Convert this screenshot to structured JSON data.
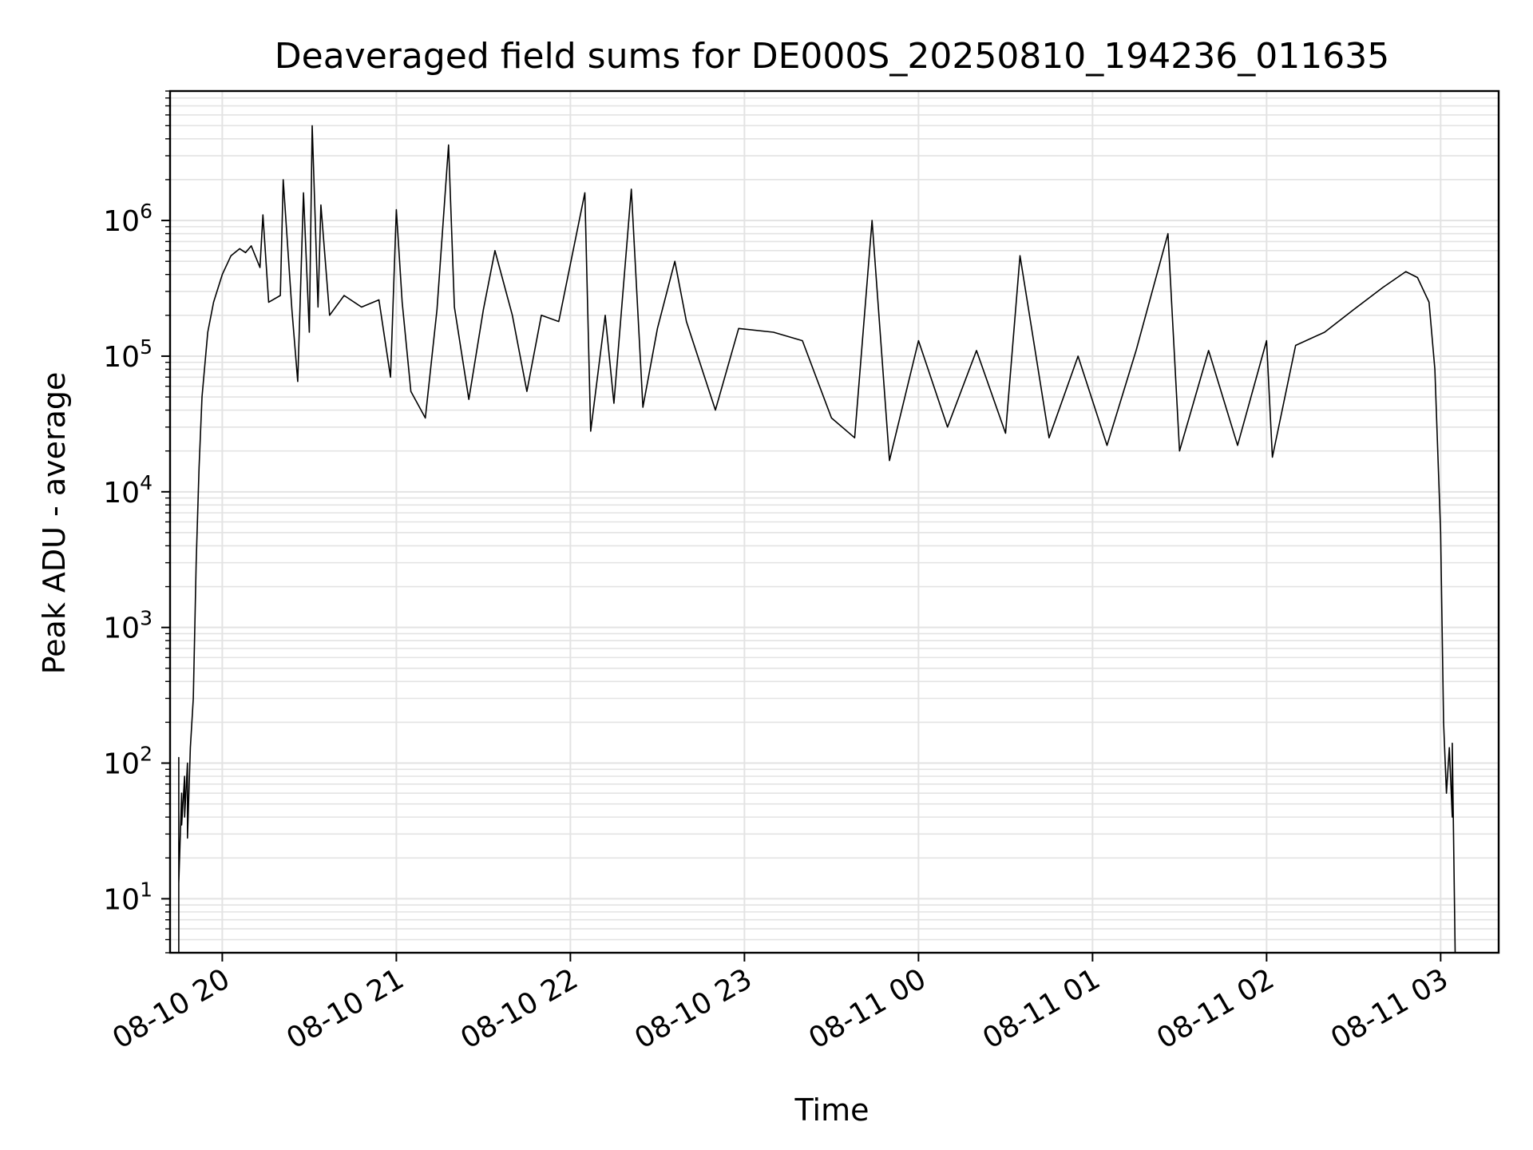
{
  "chart_data": {
    "type": "line",
    "title": "Deaveraged field sums for DE000S_20250810_194236_011635",
    "xlabel": "Time",
    "ylabel": "Peak ADU - average",
    "yscale": "log",
    "ylim": [
      4,
      9000000
    ],
    "xlim": [
      "2025-08-10 19:42",
      "2025-08-11 03:20"
    ],
    "grid": true,
    "x_ticks": [
      {
        "time": "2025-08-10 20:00",
        "label": "08-10 20"
      },
      {
        "time": "2025-08-10 21:00",
        "label": "08-10 21"
      },
      {
        "time": "2025-08-10 22:00",
        "label": "08-10 22"
      },
      {
        "time": "2025-08-10 23:00",
        "label": "08-10 23"
      },
      {
        "time": "2025-08-11 00:00",
        "label": "08-11 00"
      },
      {
        "time": "2025-08-11 01:00",
        "label": "08-11 01"
      },
      {
        "time": "2025-08-11 02:00",
        "label": "08-11 02"
      },
      {
        "time": "2025-08-11 03:00",
        "label": "08-11 03"
      }
    ],
    "y_ticks": [
      {
        "value": 10,
        "base": "10",
        "exp": "1"
      },
      {
        "value": 100,
        "base": "10",
        "exp": "2"
      },
      {
        "value": 1000,
        "base": "10",
        "exp": "3"
      },
      {
        "value": 10000,
        "base": "10",
        "exp": "4"
      },
      {
        "value": 100000,
        "base": "10",
        "exp": "5"
      },
      {
        "value": 1000000,
        "base": "10",
        "exp": "6"
      }
    ],
    "series": [
      {
        "color": "#000000",
        "points": [
          [
            "2025-08-10 19:45",
            4
          ],
          [
            "2025-08-10 19:45",
            110
          ],
          [
            "2025-08-10 19:45",
            13
          ],
          [
            "2025-08-10 19:46",
            60
          ],
          [
            "2025-08-10 19:46",
            35
          ],
          [
            "2025-08-10 19:47",
            80
          ],
          [
            "2025-08-10 19:47",
            40
          ],
          [
            "2025-08-10 19:48",
            100
          ],
          [
            "2025-08-10 19:48",
            28
          ],
          [
            "2025-08-10 19:49",
            130
          ],
          [
            "2025-08-10 19:50",
            300
          ],
          [
            "2025-08-10 19:51",
            3000
          ],
          [
            "2025-08-10 19:52",
            15000
          ],
          [
            "2025-08-10 19:53",
            50000
          ],
          [
            "2025-08-10 19:55",
            150000
          ],
          [
            "2025-08-10 19:57",
            250000
          ],
          [
            "2025-08-10 20:00",
            400000
          ],
          [
            "2025-08-10 20:03",
            550000
          ],
          [
            "2025-08-10 20:06",
            620000
          ],
          [
            "2025-08-10 20:08",
            580000
          ],
          [
            "2025-08-10 20:10",
            650000
          ],
          [
            "2025-08-10 20:13",
            450000
          ],
          [
            "2025-08-10 20:14",
            1100000
          ],
          [
            "2025-08-10 20:16",
            250000
          ],
          [
            "2025-08-10 20:20",
            280000
          ],
          [
            "2025-08-10 20:21",
            2000000
          ],
          [
            "2025-08-10 20:24",
            220000
          ],
          [
            "2025-08-10 20:26",
            65000
          ],
          [
            "2025-08-10 20:28",
            1600000
          ],
          [
            "2025-08-10 20:30",
            150000
          ],
          [
            "2025-08-10 20:31",
            5000000
          ],
          [
            "2025-08-10 20:33",
            230000
          ],
          [
            "2025-08-10 20:34",
            1300000
          ],
          [
            "2025-08-10 20:37",
            200000
          ],
          [
            "2025-08-10 20:42",
            280000
          ],
          [
            "2025-08-10 20:48",
            230000
          ],
          [
            "2025-08-10 20:54",
            260000
          ],
          [
            "2025-08-10 20:58",
            70000
          ],
          [
            "2025-08-10 21:00",
            1200000
          ],
          [
            "2025-08-10 21:02",
            250000
          ],
          [
            "2025-08-10 21:05",
            55000
          ],
          [
            "2025-08-10 21:10",
            35000
          ],
          [
            "2025-08-10 21:14",
            220000
          ],
          [
            "2025-08-10 21:18",
            3600000
          ],
          [
            "2025-08-10 21:20",
            230000
          ],
          [
            "2025-08-10 21:25",
            48000
          ],
          [
            "2025-08-10 21:30",
            220000
          ],
          [
            "2025-08-10 21:34",
            600000
          ],
          [
            "2025-08-10 21:40",
            200000
          ],
          [
            "2025-08-10 21:45",
            55000
          ],
          [
            "2025-08-10 21:50",
            200000
          ],
          [
            "2025-08-10 21:56",
            180000
          ],
          [
            "2025-08-10 22:05",
            1600000
          ],
          [
            "2025-08-10 22:07",
            28000
          ],
          [
            "2025-08-10 22:12",
            200000
          ],
          [
            "2025-08-10 22:15",
            45000
          ],
          [
            "2025-08-10 22:21",
            1700000
          ],
          [
            "2025-08-10 22:25",
            42000
          ],
          [
            "2025-08-10 22:30",
            160000
          ],
          [
            "2025-08-10 22:36",
            500000
          ],
          [
            "2025-08-10 22:40",
            180000
          ],
          [
            "2025-08-10 22:50",
            40000
          ],
          [
            "2025-08-10 22:58",
            160000
          ],
          [
            "2025-08-10 23:10",
            150000
          ],
          [
            "2025-08-10 23:20",
            130000
          ],
          [
            "2025-08-10 23:30",
            35000
          ],
          [
            "2025-08-10 23:38",
            25000
          ],
          [
            "2025-08-10 23:44",
            1000000
          ],
          [
            "2025-08-10 23:50",
            17000
          ],
          [
            "2025-08-11 00:00",
            130000
          ],
          [
            "2025-08-11 00:10",
            30000
          ],
          [
            "2025-08-11 00:20",
            110000
          ],
          [
            "2025-08-11 00:30",
            27000
          ],
          [
            "2025-08-11 00:35",
            550000
          ],
          [
            "2025-08-11 00:45",
            25000
          ],
          [
            "2025-08-11 00:55",
            100000
          ],
          [
            "2025-08-11 01:05",
            22000
          ],
          [
            "2025-08-11 01:15",
            110000
          ],
          [
            "2025-08-11 01:26",
            800000
          ],
          [
            "2025-08-11 01:30",
            20000
          ],
          [
            "2025-08-11 01:40",
            110000
          ],
          [
            "2025-08-11 01:50",
            22000
          ],
          [
            "2025-08-11 02:00",
            130000
          ],
          [
            "2025-08-11 02:02",
            18000
          ],
          [
            "2025-08-11 02:10",
            120000
          ],
          [
            "2025-08-11 02:20",
            150000
          ],
          [
            "2025-08-11 02:30",
            220000
          ],
          [
            "2025-08-11 02:40",
            320000
          ],
          [
            "2025-08-11 02:48",
            420000
          ],
          [
            "2025-08-11 02:52",
            380000
          ],
          [
            "2025-08-11 02:56",
            250000
          ],
          [
            "2025-08-11 02:58",
            80000
          ],
          [
            "2025-08-11 03:00",
            5000
          ],
          [
            "2025-08-11 03:01",
            200
          ],
          [
            "2025-08-11 03:02",
            60
          ],
          [
            "2025-08-11 03:03",
            130
          ],
          [
            "2025-08-11 03:04",
            40
          ],
          [
            "2025-08-11 03:04",
            140
          ],
          [
            "2025-08-11 03:05",
            4
          ]
        ]
      }
    ]
  }
}
